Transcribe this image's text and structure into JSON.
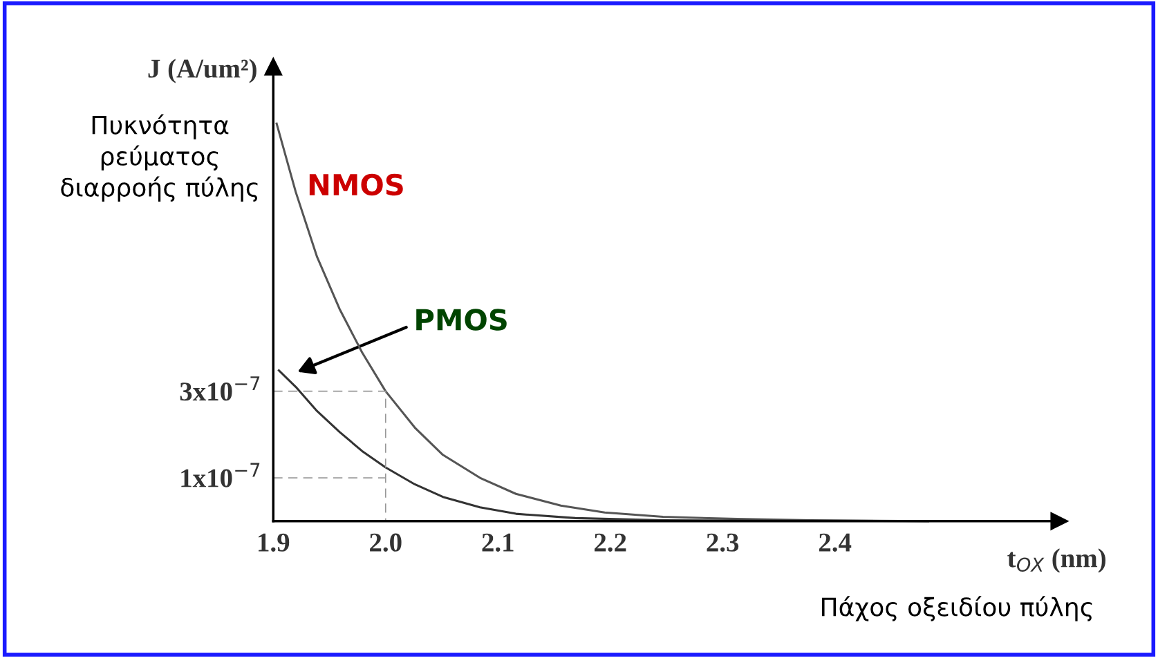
{
  "chart_data": {
    "type": "line",
    "xlabel": "t$_{OX}$ (nm)",
    "ylabel": "J (A/um²)",
    "annotations": [
      "Πυκνότητα\nρεύματος\nδιαρροής πύλης",
      "Πάχος οξειδίου πύλης"
    ],
    "xlim": [
      1.9,
      2.6
    ],
    "xticks": [
      {
        "value": 1.9,
        "label": "1.9"
      },
      {
        "value": 2.0,
        "label": "2.0"
      },
      {
        "value": 2.1,
        "label": "2.1"
      },
      {
        "value": 2.2,
        "label": "2.2"
      },
      {
        "value": 2.3,
        "label": "2.3"
      },
      {
        "value": 2.4,
        "label": "2.4"
      }
    ],
    "ylim": [
      0,
      1.05e-06
    ],
    "yticks": [
      {
        "value": 1e-07,
        "label": "1x10$^{−7}$"
      },
      {
        "value": 3e-07,
        "label": "3x10$^{−7}$"
      }
    ],
    "grid": false,
    "legend": false,
    "marker": "none",
    "series": [
      {
        "name": "NMOS",
        "color": "#555555",
        "x": [
          1.903,
          1.92,
          1.939,
          1.959,
          1.979,
          2.0,
          2.026,
          2.051,
          2.084,
          2.116,
          2.156,
          2.195,
          2.247,
          2.313,
          2.378,
          2.483
        ],
        "values": [
          9.18e-07,
          7.6e-07,
          6.1e-07,
          4.9e-07,
          3.9e-07,
          3e-07,
          2.16e-07,
          1.53e-07,
          1e-07,
          6.3e-08,
          3.6e-08,
          2e-08,
          1e-08,
          5e-09,
          2e-09,
          0
        ]
      },
      {
        "name": "PMOS",
        "color": "#333333",
        "x": [
          1.905,
          1.92,
          1.939,
          1.959,
          1.979,
          2.0,
          2.026,
          2.051,
          2.084,
          2.116,
          2.169,
          2.247,
          2.483
        ],
        "values": [
          3.48e-07,
          3.1e-07,
          2.54e-07,
          2.06e-07,
          1.62e-07,
          1.24e-07,
          8.5e-08,
          5.6e-08,
          3.2e-08,
          1.7e-08,
          7e-09,
          2e-09,
          0
        ]
      },
      {
        "color": "#999999",
        "line_style": "dashed",
        "x": [
          1.9,
          2.0,
          2.0
        ],
        "values": [
          3e-07,
          3e-07,
          0
        ]
      },
      {
        "color": "#999999",
        "line_style": "dashed",
        "x": [
          1.9,
          2.0
        ],
        "values": [
          1e-07,
          1e-07
        ]
      }
    ]
  }
}
